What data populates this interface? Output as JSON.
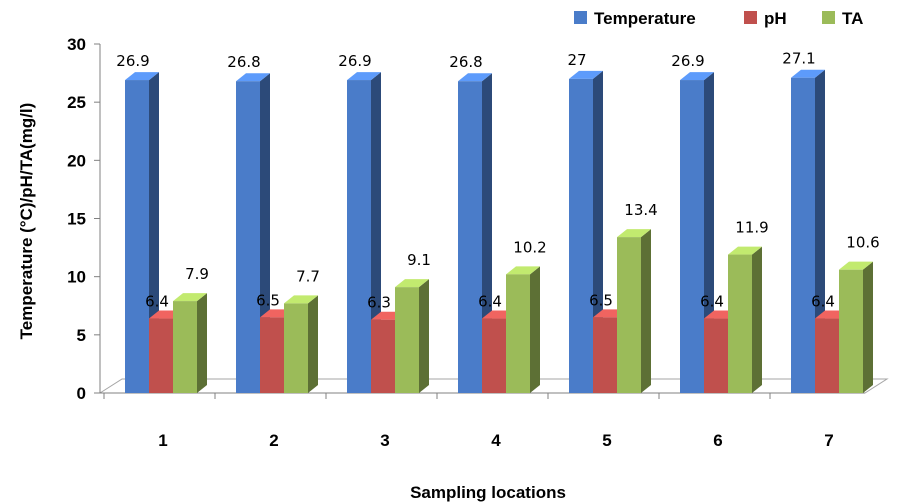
{
  "chart_data": {
    "type": "bar",
    "categories": [
      "1",
      "2",
      "3",
      "4",
      "5",
      "6",
      "7"
    ],
    "series": [
      {
        "name": "Temperature",
        "values": [
          26.9,
          26.8,
          26.9,
          26.8,
          27,
          26.9,
          27.1
        ],
        "color": "#4a7cc9"
      },
      {
        "name": "pH",
        "values": [
          6.4,
          6.5,
          6.3,
          6.4,
          6.5,
          6.4,
          6.4
        ],
        "color": "#c0504d"
      },
      {
        "name": "TA",
        "values": [
          7.9,
          7.7,
          9.1,
          10.2,
          13.4,
          11.9,
          10.6
        ],
        "color": "#9bbb59"
      }
    ],
    "xlabel": "Sampling locations",
    "ylabel": "Temperature (°C)/pH/TA(mg/l)",
    "ylim": [
      0,
      30
    ],
    "yticks": [
      0,
      5,
      10,
      15,
      20,
      25,
      30
    ],
    "legend_position": "top-right",
    "grid": false
  }
}
